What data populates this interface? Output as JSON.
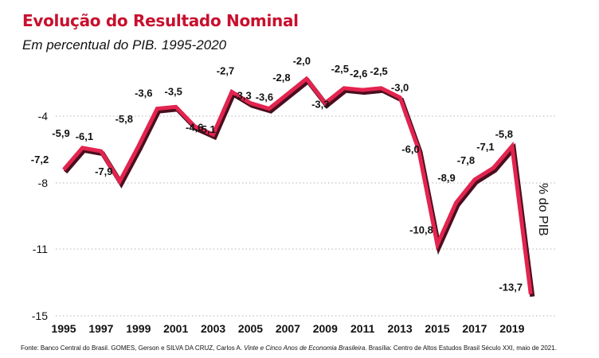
{
  "chart_data": {
    "type": "line",
    "title": "Evolução do Resultado Nominal",
    "subtitle": "Em percentual do PIB. 1995-2020",
    "xlabel": "",
    "ylabel": "% do PIB",
    "x": [
      1995,
      1996,
      1997,
      1998,
      1999,
      2000,
      2001,
      2002,
      2003,
      2004,
      2005,
      2006,
      2007,
      2008,
      2009,
      2010,
      2011,
      2012,
      2013,
      2014,
      2015,
      2016,
      2017,
      2018,
      2019,
      2020
    ],
    "series": [
      {
        "name": "Resultado Nominal",
        "values": [
          -7.2,
          -5.9,
          -6.1,
          -7.9,
          -5.8,
          -3.6,
          -3.5,
          -4.6,
          -5.1,
          -2.7,
          -3.3,
          -3.6,
          -2.8,
          -2.0,
          -3.3,
          -2.5,
          -2.6,
          -2.5,
          -3.0,
          -6.0,
          -10.8,
          -8.9,
          -7.8,
          -7.1,
          -5.8,
          -13.7
        ],
        "labels": [
          "-7,2",
          "-5,9",
          "-6,1",
          "-7,9",
          "-5,8",
          "-3,6",
          "-3,5",
          "-4,6",
          "-5,1",
          "-2,7",
          "-3,3",
          "-3,6",
          "-2,8",
          "-2,0",
          "-3,3",
          "-2,5",
          "-2,6",
          "-2,5",
          "-3,0",
          "-6,0",
          "-10,8",
          "-8,9",
          "-7,8",
          "-7,1",
          "-5,8",
          "-13,7"
        ]
      }
    ],
    "yticks": [
      -4,
      -8,
      -11,
      -15
    ],
    "ytick_labels": [
      "-4",
      "-8",
      "-11",
      "-15"
    ],
    "xticks": [
      1995,
      1997,
      1999,
      2001,
      2003,
      2005,
      2007,
      2009,
      2011,
      2013,
      2015,
      2017,
      2019
    ],
    "xtick_labels": [
      "1995",
      "1997",
      "1999",
      "2001",
      "2003",
      "2005",
      "2007",
      "2009",
      "2011",
      "2013",
      "2015",
      "2017",
      "2019"
    ],
    "ylim": [
      -15,
      -2
    ],
    "xlim": [
      1995,
      2020
    ],
    "grid": "horizontal dotted",
    "legend": "none",
    "colors": {
      "line": "#e3244f",
      "line_shadow": "#4a0f1f",
      "title": "#c8102e",
      "grid": "#bbbbbb"
    }
  },
  "source": {
    "prefix": "Fonte: Banco Central do Brasil. GOMES, Gerson e SILVA DA CRUZ, Carlos A. ",
    "book_title": "Vinte e Cinco Anos de Economia Brasileira",
    "suffix": ". Brasília: Centro de Altos Estudos Brasil Século XXI, maio de 2021."
  }
}
